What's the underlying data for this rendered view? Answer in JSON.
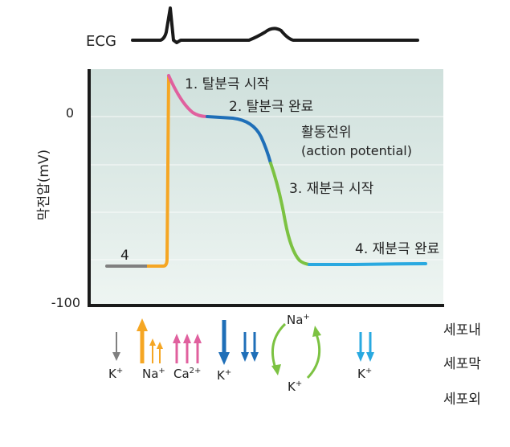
{
  "ecg": {
    "label": "ECG"
  },
  "axis": {
    "ylabel": "막전압(mV)",
    "tick_top": "0",
    "tick_bottom": "-100"
  },
  "phases": {
    "p1": "1. 탈분극 시작",
    "p2": "2. 탈분극 완료",
    "p3": "3. 재분극 시작",
    "p4": "4. 재분극 완료",
    "p0": "4"
  },
  "ap_label": {
    "line1": "활동전위",
    "line2": "(action potential)"
  },
  "ions": {
    "k1": "K",
    "na": "Na",
    "ca": "Ca",
    "k2": "K",
    "pump_na": "Na",
    "pump_k": "K",
    "k3": "K",
    "plus": "+",
    "ca_sup": "2+"
  },
  "regions": {
    "inside": "세포내",
    "membrane": "세포막",
    "outside": "세포외"
  },
  "colors": {
    "phase0": "#f5a623",
    "phase1": "#e0609e",
    "phase2": "#1f6fb8",
    "phase3": "#7cc242",
    "phase4": "#29a9e0",
    "resting": "#808080",
    "plot_bg_top": "#cfe0dc",
    "plot_bg_bottom": "#eef5f2"
  }
}
